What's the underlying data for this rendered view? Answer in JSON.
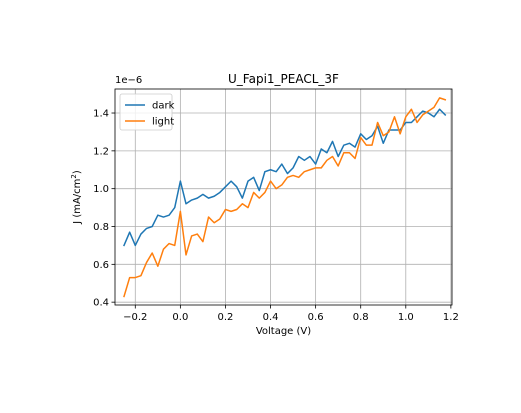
{
  "chart_data": {
    "type": "line",
    "title": "U_Fapi1_PEACL_3F",
    "xlabel": "Voltage (V)",
    "ylabel_main": "J (mA/cm",
    "ylabel_sup": "2",
    "ylabel_close": ")",
    "offset_text": "1e−6",
    "y_scale": 1e-06,
    "xlim": [
      -0.29,
      1.205
    ],
    "ylim": [
      0.385,
      1.527
    ],
    "grid": true,
    "legend_location": "upper left",
    "x_ticks": [
      -0.2,
      0.0,
      0.2,
      0.4,
      0.6,
      0.8,
      1.0,
      1.2
    ],
    "x_tick_labels": [
      "−0.2",
      "0.0",
      "0.2",
      "0.4",
      "0.6",
      "0.8",
      "1.0",
      "1.2"
    ],
    "y_ticks": [
      0.4,
      0.6,
      0.8,
      1.0,
      1.2,
      1.4
    ],
    "y_tick_labels": [
      "0.4",
      "0.6",
      "0.8",
      "1.0",
      "1.2",
      "1.4"
    ],
    "x": [
      -0.25,
      -0.225,
      -0.2,
      -0.175,
      -0.15,
      -0.125,
      -0.1,
      -0.075,
      -0.05,
      -0.025,
      0.0,
      0.025,
      0.05,
      0.075,
      0.1,
      0.125,
      0.15,
      0.175,
      0.2,
      0.225,
      0.25,
      0.275,
      0.3,
      0.325,
      0.35,
      0.375,
      0.4,
      0.425,
      0.45,
      0.475,
      0.5,
      0.525,
      0.55,
      0.575,
      0.6,
      0.625,
      0.65,
      0.675,
      0.7,
      0.725,
      0.75,
      0.775,
      0.8,
      0.825,
      0.85,
      0.875,
      0.9,
      0.925,
      0.95,
      0.975,
      1.0,
      1.025,
      1.05,
      1.075,
      1.1,
      1.125,
      1.15,
      1.175
    ],
    "series": [
      {
        "name": "dark",
        "color": "#1f77b4",
        "values": [
          0.7,
          0.77,
          0.7,
          0.76,
          0.79,
          0.8,
          0.86,
          0.85,
          0.86,
          0.9,
          1.04,
          0.92,
          0.94,
          0.95,
          0.97,
          0.95,
          0.96,
          0.98,
          1.01,
          1.04,
          1.01,
          0.95,
          1.04,
          1.06,
          0.99,
          1.09,
          1.1,
          1.09,
          1.13,
          1.08,
          1.11,
          1.17,
          1.15,
          1.17,
          1.13,
          1.21,
          1.19,
          1.25,
          1.17,
          1.23,
          1.24,
          1.22,
          1.29,
          1.26,
          1.28,
          1.33,
          1.24,
          1.31,
          1.31,
          1.31,
          1.35,
          1.35,
          1.38,
          1.41,
          1.4,
          1.38,
          1.42,
          1.39
        ]
      },
      {
        "name": "light",
        "color": "#ff7f0e",
        "values": [
          0.43,
          0.53,
          0.53,
          0.54,
          0.61,
          0.66,
          0.59,
          0.68,
          0.71,
          0.7,
          0.88,
          0.65,
          0.75,
          0.76,
          0.72,
          0.85,
          0.82,
          0.84,
          0.89,
          0.88,
          0.89,
          0.92,
          0.9,
          0.98,
          0.95,
          0.98,
          1.04,
          1.0,
          1.02,
          1.06,
          1.07,
          1.06,
          1.09,
          1.1,
          1.11,
          1.11,
          1.15,
          1.17,
          1.12,
          1.19,
          1.19,
          1.16,
          1.27,
          1.23,
          1.23,
          1.35,
          1.28,
          1.3,
          1.38,
          1.29,
          1.38,
          1.42,
          1.35,
          1.39,
          1.41,
          1.43,
          1.48,
          1.47
        ]
      }
    ]
  }
}
